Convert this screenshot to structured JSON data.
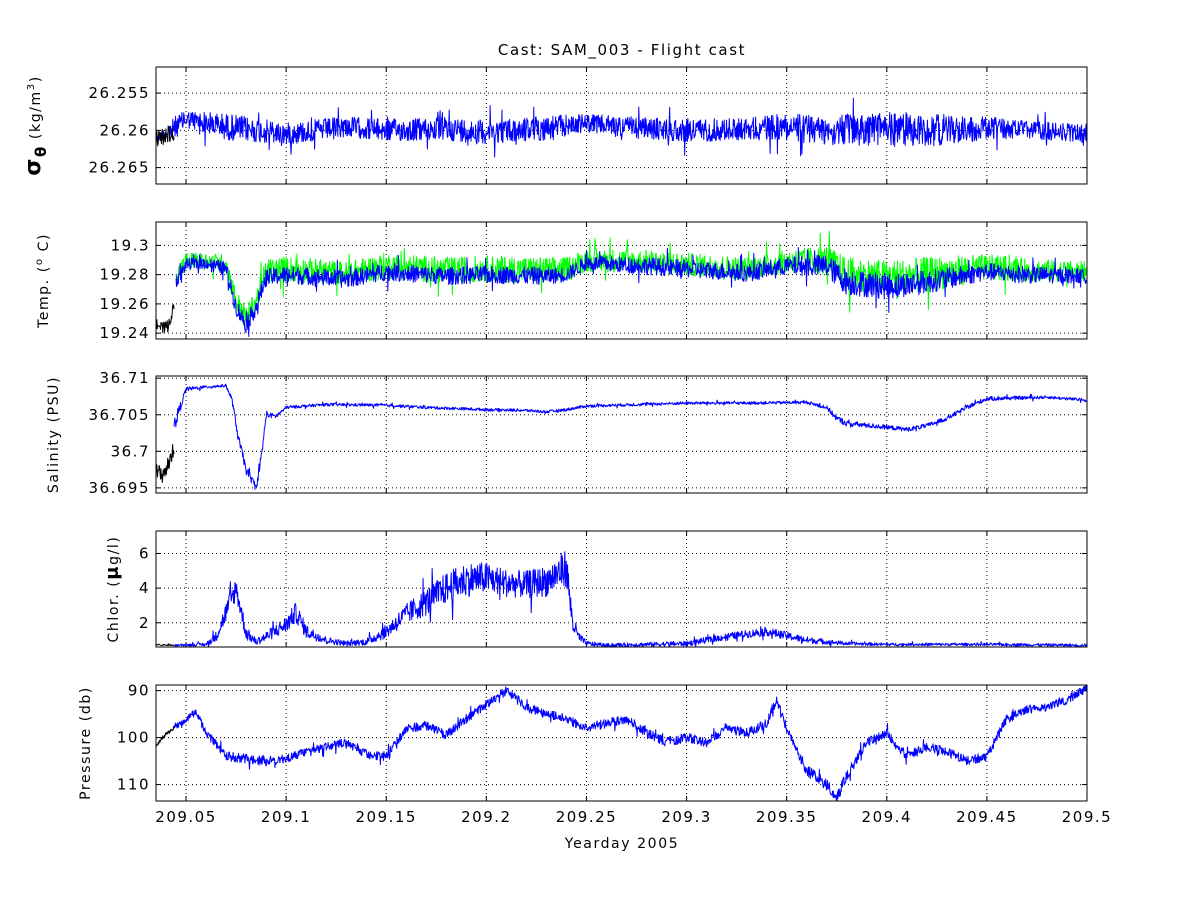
{
  "chart_data": {
    "type": "line",
    "title": "Cast: SAM_003 - Flight cast",
    "xlabel": "Yearday 2005",
    "xlim": [
      209.035,
      209.5
    ],
    "xticks": [
      209.05,
      209.1,
      209.15,
      209.2,
      209.25,
      209.3,
      209.35,
      209.4,
      209.45,
      209.5
    ],
    "xtick_labels": [
      "209.05",
      "209.1",
      "209.15",
      "209.2",
      "209.25",
      "209.3",
      "209.35",
      "209.4",
      "209.45",
      "209.5"
    ],
    "grid": true,
    "colors": {
      "primary": "#0000ff",
      "secondary": "#00ff00",
      "start": "#000000"
    },
    "panels": [
      {
        "id": "sigma",
        "ylabel_symbol": "σ",
        "ylabel_sub": "θ",
        "ylabel_unit": "(kg/m",
        "ylabel_sup": "3",
        "ylabel_close": ")",
        "ylim": [
          26.2515,
          26.2672
        ],
        "reversed": true,
        "yticks": [
          26.255,
          26.26,
          26.265
        ],
        "ytick_labels": [
          "26.255",
          "26.26",
          "26.265"
        ],
        "series": [
          {
            "color": "#0000ff",
            "x": [
              209.035,
              209.045,
              209.05,
              209.07,
              209.1,
              209.13,
              209.15,
              209.18,
              209.2,
              209.23,
              209.25,
              209.28,
              209.3,
              209.33,
              209.35,
              209.37,
              209.4,
              209.42,
              209.45,
              209.47,
              209.5
            ],
            "y": [
              26.2612,
              26.2595,
              26.2585,
              26.2595,
              26.2605,
              26.2595,
              26.26,
              26.2598,
              26.2602,
              26.2597,
              26.259,
              26.2598,
              26.26,
              26.2598,
              26.2595,
              26.26,
              26.2598,
              26.26,
              26.2597,
              26.2599,
              26.2605
            ],
            "amplitude": [
              0.0004,
              0.0015,
              0.0012,
              0.0018,
              0.0015,
              0.0014,
              0.0015,
              0.0016,
              0.0016,
              0.0017,
              0.0012,
              0.0015,
              0.0016,
              0.0015,
              0.0018,
              0.002,
              0.0024,
              0.0022,
              0.0016,
              0.0012,
              0.0012
            ]
          },
          {
            "color": "#000000",
            "x": [
              209.035,
              209.038,
              209.041,
              209.044
            ],
            "y": [
              26.2612,
              26.2609,
              26.2606,
              26.2603
            ],
            "amplitude": [
              0.001,
              0.0012,
              0.0012,
              0.001
            ]
          }
        ]
      },
      {
        "id": "temp",
        "ylabel": "Temp. (",
        "ylabel_sup": "o",
        "ylabel_unit": " C)",
        "ylim": [
          19.236,
          19.316
        ],
        "reversed": false,
        "yticks": [
          19.24,
          19.26,
          19.28,
          19.3
        ],
        "ytick_labels": [
          "19.24",
          "19.26",
          "19.28",
          "19.3"
        ],
        "series": [
          {
            "color": "#00ff00",
            "x": [
              209.045,
              209.05,
              209.06,
              209.07,
              209.075,
              209.08,
              209.085,
              209.09,
              209.1,
              209.13,
              209.15,
              209.18,
              209.2,
              209.23,
              209.24,
              209.25,
              209.28,
              209.3,
              209.33,
              209.35,
              209.37,
              209.38,
              209.4,
              209.42,
              209.45,
              209.47,
              209.5
            ],
            "y": [
              19.279,
              19.289,
              19.29,
              19.287,
              19.262,
              19.25,
              19.262,
              19.282,
              19.284,
              19.281,
              19.286,
              19.283,
              19.284,
              19.283,
              19.284,
              19.29,
              19.289,
              19.287,
              19.284,
              19.289,
              19.29,
              19.28,
              19.278,
              19.28,
              19.285,
              19.283,
              19.282
            ],
            "amplitude": [
              0.004,
              0.006,
              0.005,
              0.007,
              0.008,
              0.008,
              0.008,
              0.009,
              0.009,
              0.008,
              0.009,
              0.009,
              0.009,
              0.009,
              0.008,
              0.008,
              0.008,
              0.008,
              0.008,
              0.008,
              0.01,
              0.012,
              0.012,
              0.012,
              0.009,
              0.008,
              0.007
            ]
          },
          {
            "color": "#0000ff",
            "x": [
              209.045,
              209.05,
              209.06,
              209.07,
              209.075,
              209.08,
              209.085,
              209.09,
              209.1,
              209.13,
              209.15,
              209.18,
              209.2,
              209.23,
              209.24,
              209.25,
              209.28,
              209.3,
              209.33,
              209.35,
              209.37,
              209.38,
              209.4,
              209.42,
              209.45,
              209.47,
              209.5
            ],
            "y": [
              19.275,
              19.287,
              19.288,
              19.284,
              19.258,
              19.246,
              19.258,
              19.278,
              19.28,
              19.277,
              19.282,
              19.279,
              19.28,
              19.279,
              19.28,
              19.288,
              19.286,
              19.284,
              19.281,
              19.286,
              19.286,
              19.275,
              19.272,
              19.275,
              19.282,
              19.28,
              19.279
            ],
            "amplitude": [
              0.004,
              0.004,
              0.004,
              0.005,
              0.006,
              0.006,
              0.006,
              0.006,
              0.006,
              0.006,
              0.006,
              0.006,
              0.006,
              0.006,
              0.005,
              0.005,
              0.006,
              0.006,
              0.006,
              0.006,
              0.008,
              0.009,
              0.009,
              0.008,
              0.006,
              0.006,
              0.005
            ]
          },
          {
            "color": "#000000",
            "x": [
              209.035,
              209.038,
              209.041,
              209.044
            ],
            "y": [
              19.248,
              19.243,
              19.245,
              19.258
            ],
            "amplitude": [
              0.004,
              0.004,
              0.004,
              0.004
            ]
          }
        ]
      },
      {
        "id": "salinity",
        "ylabel": "Salinity (PSU)",
        "ylim": [
          36.6943,
          36.7103
        ],
        "reversed": false,
        "yticks": [
          36.695,
          36.7,
          36.705,
          36.71
        ],
        "ytick_labels": [
          "36.695",
          "36.7",
          "36.705",
          "36.71"
        ],
        "series": [
          {
            "color": "#0000ff",
            "x": [
              209.044,
              209.05,
              209.06,
              209.07,
              209.073,
              209.076,
              209.08,
              209.085,
              209.088,
              209.09,
              209.095,
              209.1,
              209.12,
              209.15,
              209.17,
              209.2,
              209.22,
              209.23,
              209.24,
              209.25,
              209.3,
              209.33,
              209.36,
              209.37,
              209.375,
              209.38,
              209.4,
              209.41,
              209.42,
              209.43,
              209.44,
              209.45,
              209.48,
              209.5
            ],
            "y": [
              36.7035,
              36.7085,
              36.7088,
              36.709,
              36.707,
              36.702,
              36.6975,
              36.695,
              36.7,
              36.705,
              36.7048,
              36.706,
              36.7064,
              36.7063,
              36.706,
              36.7057,
              36.7056,
              36.7054,
              36.7057,
              36.7062,
              36.7066,
              36.7066,
              36.7067,
              36.706,
              36.7045,
              36.7038,
              36.7033,
              36.703,
              36.7035,
              36.7045,
              36.706,
              36.7072,
              36.7074,
              36.707
            ],
            "amplitude": [
              0.001,
              0.0003,
              0.0002,
              0.0002,
              0.0004,
              0.0006,
              0.0006,
              0.0005,
              0.0006,
              0.0004,
              0.0003,
              0.0002,
              0.0002,
              0.0002,
              0.0002,
              0.0002,
              0.0002,
              0.0002,
              0.0002,
              0.0002,
              0.0002,
              0.0002,
              0.0002,
              0.0003,
              0.0004,
              0.0004,
              0.0003,
              0.0003,
              0.0003,
              0.0003,
              0.0003,
              0.0003,
              0.0002,
              0.0002
            ]
          },
          {
            "color": "#000000",
            "x": [
              209.035,
              209.038,
              209.041,
              209.044
            ],
            "y": [
              36.6972,
              36.6968,
              36.698,
              36.7005
            ],
            "amplitude": [
              0.0012,
              0.0012,
              0.0012,
              0.001
            ]
          }
        ]
      },
      {
        "id": "chlor",
        "ylabel_pre": "Chlor. (",
        "ylabel_mu": "μ",
        "ylabel_unit": "g/l)",
        "ylim": [
          0.6,
          7.3
        ],
        "reversed": false,
        "yticks": [
          2,
          4,
          6
        ],
        "ytick_labels": [
          "2",
          "4",
          "6"
        ],
        "series": [
          {
            "color": "#0000ff",
            "x": [
              209.044,
              209.06,
              209.065,
              209.07,
              209.075,
              209.08,
              209.085,
              209.09,
              209.1,
              209.105,
              209.11,
              209.12,
              209.13,
              209.14,
              209.15,
              209.16,
              209.17,
              209.18,
              209.19,
              209.2,
              209.21,
              209.22,
              209.23,
              209.24,
              209.243,
              209.246,
              209.25,
              209.26,
              209.3,
              209.32,
              209.34,
              209.36,
              209.38,
              209.4,
              209.45,
              209.5
            ],
            "y": [
              0.7,
              0.75,
              1.2,
              2.6,
              4.0,
              1.4,
              0.9,
              1.2,
              1.9,
              2.6,
              1.5,
              1.0,
              0.8,
              0.9,
              1.5,
              2.5,
              3.2,
              4.0,
              4.5,
              4.6,
              4.3,
              4.2,
              4.4,
              5.2,
              2.0,
              1.2,
              0.8,
              0.7,
              0.8,
              1.2,
              1.5,
              1.0,
              0.8,
              0.75,
              0.75,
              0.7
            ],
            "amplitude": [
              0.05,
              0.1,
              0.3,
              0.6,
              0.7,
              0.4,
              0.2,
              0.3,
              0.5,
              0.6,
              0.4,
              0.2,
              0.15,
              0.2,
              0.4,
              0.6,
              0.8,
              0.9,
              1.0,
              0.9,
              0.8,
              0.8,
              0.9,
              1.1,
              0.6,
              0.3,
              0.15,
              0.1,
              0.15,
              0.2,
              0.25,
              0.2,
              0.1,
              0.08,
              0.08,
              0.08
            ]
          },
          {
            "color": "#000000",
            "x": [
              209.035,
              209.038,
              209.041,
              209.044
            ],
            "y": [
              0.75,
              0.72,
              0.72,
              0.7
            ],
            "amplitude": [
              0.04,
              0.04,
              0.04,
              0.04
            ]
          }
        ]
      },
      {
        "id": "pressure",
        "ylabel": "Pressure (db)",
        "ylim": [
          88.8,
          113.5
        ],
        "reversed": true,
        "yticks": [
          90,
          100,
          110
        ],
        "ytick_labels": [
          "90",
          "100",
          "110"
        ],
        "series": [
          {
            "color": "#0000ff",
            "x": [
              209.044,
              209.05,
              209.055,
              209.06,
              209.07,
              209.08,
              209.09,
              209.1,
              209.11,
              209.12,
              209.13,
              209.14,
              209.15,
              209.16,
              209.17,
              209.18,
              209.19,
              209.2,
              209.21,
              209.22,
              209.23,
              209.24,
              209.25,
              209.26,
              209.27,
              209.28,
              209.29,
              209.3,
              209.31,
              209.32,
              209.33,
              209.34,
              209.345,
              209.35,
              209.36,
              209.37,
              209.375,
              209.38,
              209.39,
              209.4,
              209.41,
              209.42,
              209.43,
              209.44,
              209.45,
              209.46,
              209.47,
              209.48,
              209.49,
              209.5
            ],
            "y": [
              98,
              96,
              94.5,
              99,
              104,
              104.5,
              105,
              104.5,
              103,
              102,
              101,
              103.5,
              104,
              98,
              97.5,
              99.5,
              96,
              93,
              90,
              93.5,
              95,
              96,
              98,
              97,
              96,
              99,
              101,
              100,
              101,
              98,
              99,
              97,
              92,
              98,
              107,
              110,
              113,
              108,
              101,
              99,
              104,
              102,
              103,
              105,
              104,
              96,
              94,
              93.5,
              92,
              89.5
            ],
            "amplitude": [
              0.6,
              0.8,
              0.8,
              0.9,
              1.0,
              1.0,
              1.0,
              1.0,
              0.9,
              0.9,
              0.9,
              1.0,
              1.0,
              1.0,
              1.0,
              1.0,
              1.0,
              1.0,
              1.0,
              1.0,
              1.0,
              1.0,
              1.0,
              1.0,
              1.0,
              1.0,
              1.0,
              1.0,
              1.0,
              1.0,
              1.0,
              1.0,
              1.0,
              1.0,
              1.2,
              1.2,
              1.2,
              1.2,
              1.0,
              1.0,
              1.0,
              1.0,
              1.0,
              1.0,
              1.0,
              1.0,
              0.9,
              0.9,
              0.9,
              0.9
            ]
          },
          {
            "color": "#000000",
            "x": [
              209.035,
              209.038,
              209.041,
              209.044
            ],
            "y": [
              102,
              100,
              99,
              98
            ],
            "amplitude": [
              0.4,
              0.4,
              0.4,
              0.4
            ]
          }
        ]
      }
    ]
  }
}
